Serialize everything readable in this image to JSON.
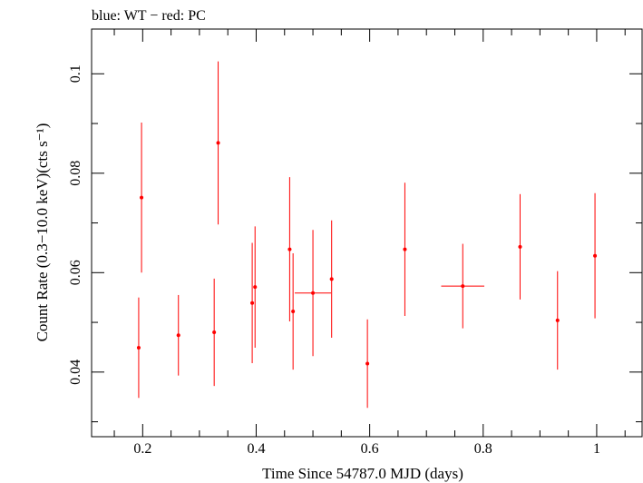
{
  "chart_data": {
    "type": "scatter",
    "title": "blue: WT − red: PC",
    "xlabel": "Time Since 54787.0 MJD (days)",
    "ylabel": "Count Rate (0.3−10.0 keV)(cts s⁻¹)",
    "xlim": [
      0.11,
      1.08
    ],
    "ylim": [
      0.027,
      0.109
    ],
    "x_ticks": [
      0.2,
      0.4,
      0.6,
      0.8,
      1
    ],
    "x_tick_labels": [
      "0.2",
      "0.4",
      "0.6",
      "0.8",
      "1"
    ],
    "y_ticks": [
      0.04,
      0.06,
      0.08,
      0.1
    ],
    "y_tick_labels": [
      "0.04",
      "0.06",
      "0.08",
      "0.1"
    ],
    "grid": false,
    "series": [
      {
        "color": "#ff0000",
        "points": [
          {
            "x": 0.193,
            "y": 0.0449,
            "xerr": 0.003,
            "yerr": 0.0101
          },
          {
            "x": 0.198,
            "y": 0.0751,
            "xerr": 0.003,
            "yerr": 0.0151
          },
          {
            "x": 0.263,
            "y": 0.0474,
            "xerr": 0.003,
            "yerr": 0.0081
          },
          {
            "x": 0.326,
            "y": 0.048,
            "xerr": 0.003,
            "yerr": 0.0108
          },
          {
            "x": 0.333,
            "y": 0.0861,
            "xerr": 0.003,
            "yerr": 0.0164
          },
          {
            "x": 0.393,
            "y": 0.0539,
            "xerr": 0.003,
            "yerr": 0.0121
          },
          {
            "x": 0.398,
            "y": 0.0571,
            "xerr": 0.003,
            "yerr": 0.0122
          },
          {
            "x": 0.459,
            "y": 0.0647,
            "xerr": 0.003,
            "yerr": 0.0145
          },
          {
            "x": 0.465,
            "y": 0.0522,
            "xerr": 0.003,
            "yerr": 0.0117
          },
          {
            "x": 0.5,
            "y": 0.0559,
            "xerr": 0.032,
            "yerr": 0.0127
          },
          {
            "x": 0.533,
            "y": 0.0587,
            "xerr": 0.003,
            "yerr": 0.0118
          },
          {
            "x": 0.596,
            "y": 0.0417,
            "xerr": 0.003,
            "yerr": 0.0089
          },
          {
            "x": 0.662,
            "y": 0.0647,
            "xerr": 0.003,
            "yerr": 0.0134
          },
          {
            "x": 0.764,
            "y": 0.0573,
            "xerr": 0.038,
            "yerr": 0.0085
          },
          {
            "x": 0.865,
            "y": 0.0652,
            "xerr": 0.003,
            "yerr": 0.0106
          },
          {
            "x": 0.931,
            "y": 0.0504,
            "xerr": 0.003,
            "yerr": 0.0099
          },
          {
            "x": 0.997,
            "y": 0.0634,
            "xerr": 0.003,
            "yerr": 0.0126
          }
        ]
      }
    ]
  }
}
